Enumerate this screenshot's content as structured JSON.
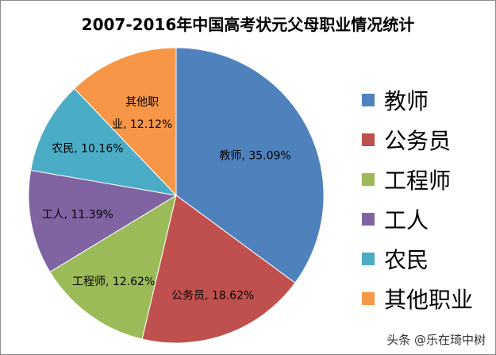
{
  "chart_data": {
    "type": "pie",
    "title": "2007-2016年中国高考状元父母职业情况统计",
    "categories": [
      "教师",
      "公务员",
      "工程师",
      "工人",
      "农民",
      "其他职业"
    ],
    "values": [
      35.09,
      18.62,
      12.62,
      11.39,
      10.16,
      12.12
    ],
    "data_labels": [
      "教师, 35.09%",
      "公务员, 18.62%",
      "工程师, 12.62%",
      "工人, 11.39%",
      "农民, 10.16%",
      "其他职业, 12.12%"
    ],
    "colors": [
      "#4F81BD",
      "#C0504D",
      "#9BBB59",
      "#8064A2",
      "#4BACC6",
      "#F79646"
    ],
    "legend_position": "right",
    "start": "12 o'clock, clockwise"
  },
  "watermark": "头条 @乐在琦中树"
}
